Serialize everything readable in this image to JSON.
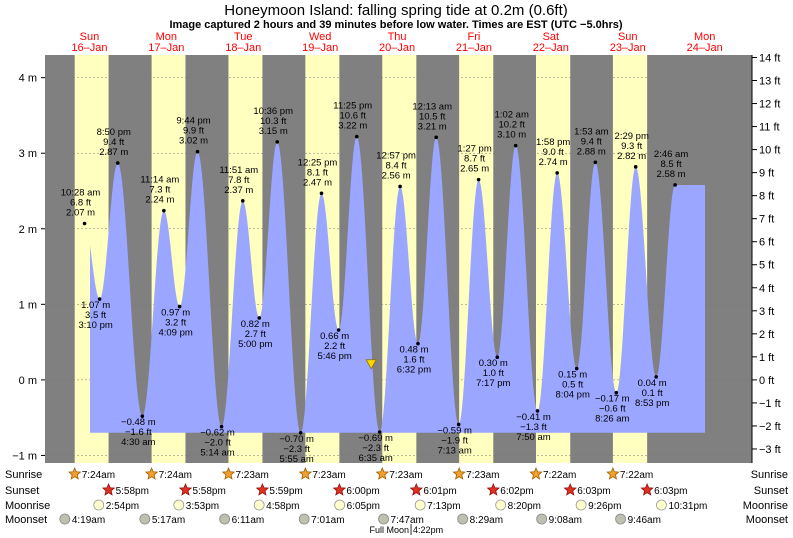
{
  "title": "Honeymoon Island: falling  spring tide at 0.2m (0.6ft)",
  "subtitle": "Image captured 2 hours and 39 minutes before low water. Times are EST (UTC −5.0hrs)",
  "colors": {
    "night": "#808080",
    "day": "#ffffc0",
    "water": "#9aa6ff",
    "day_label": "#ff0000",
    "current_marker": "#ffd700"
  },
  "chart_data": {
    "type": "area",
    "ylim_m": [
      -1.1,
      4.3
    ],
    "ylim_ft": [
      -3.6,
      14.1
    ],
    "y_ticks_m": [
      -1,
      0,
      1,
      2,
      3,
      4
    ],
    "y_tick_labels_m": [
      "−1 m",
      "0 m",
      "1 m",
      "2 m",
      "3 m",
      "4 m"
    ],
    "y_ticks_ft": [
      -3,
      -2,
      -1,
      0,
      1,
      2,
      3,
      4,
      5,
      6,
      7,
      8,
      9,
      10,
      11,
      12,
      13,
      14
    ],
    "y_tick_labels_ft": [
      "−3 ft",
      "−2 ft",
      "−1 ft",
      "0 ft",
      "1 ft",
      "2 ft",
      "3 ft",
      "4 ft",
      "5 ft",
      "6 ft",
      "7 ft",
      "8 ft",
      "9 ft",
      "10 ft",
      "11 ft",
      "12 ft",
      "13 ft",
      "14 ft"
    ],
    "days": [
      {
        "name": "Sun",
        "date": "16–Jan"
      },
      {
        "name": "Mon",
        "date": "17–Jan"
      },
      {
        "name": "Tue",
        "date": "18–Jan"
      },
      {
        "name": "Wed",
        "date": "19–Jan"
      },
      {
        "name": "Thu",
        "date": "20–Jan"
      },
      {
        "name": "Fri",
        "date": "21–Jan"
      },
      {
        "name": "Sat",
        "date": "22–Jan"
      },
      {
        "name": "Sun",
        "date": "23–Jan"
      },
      {
        "name": "Mon",
        "date": "24–Jan"
      }
    ],
    "tides": [
      {
        "day": 0,
        "time_h": 10.47,
        "m": 2.07,
        "labels": [
          "10:28 am",
          "6.8 ft",
          "2.07 m"
        ]
      },
      {
        "day": 0,
        "time_h": 15.17,
        "m": 1.07,
        "labels": [
          "1.07 m",
          "3.5 ft",
          "3:10 pm"
        ]
      },
      {
        "day": 0,
        "time_h": 20.83,
        "m": 2.87,
        "labels": [
          "8:50 pm",
          "9.4 ft",
          "2.87 m"
        ]
      },
      {
        "day": 1,
        "time_h": 4.5,
        "m": -0.48,
        "labels": [
          "−0.48 m",
          "−1.6 ft",
          "4:30 am"
        ]
      },
      {
        "day": 1,
        "time_h": 11.23,
        "m": 2.24,
        "labels": [
          "11:14 am",
          "7.3 ft",
          "2.24 m"
        ]
      },
      {
        "day": 1,
        "time_h": 16.15,
        "m": 0.97,
        "labels": [
          "0.97 m",
          "3.2 ft",
          "4:09 pm"
        ]
      },
      {
        "day": 1,
        "time_h": 21.73,
        "m": 3.02,
        "labels": [
          "9:44 pm",
          "9.9 ft",
          "3.02 m"
        ]
      },
      {
        "day": 2,
        "time_h": 5.23,
        "m": -0.62,
        "labels": [
          "−0.62 m",
          "−2.0 ft",
          "5:14 am"
        ]
      },
      {
        "day": 2,
        "time_h": 11.85,
        "m": 2.37,
        "labels": [
          "11:51 am",
          "7.8 ft",
          "2.37 m"
        ]
      },
      {
        "day": 2,
        "time_h": 17.0,
        "m": 0.82,
        "labels": [
          "0.82 m",
          "2.7 ft",
          "5:00 pm"
        ]
      },
      {
        "day": 2,
        "time_h": 22.6,
        "m": 3.15,
        "labels": [
          "10:36 pm",
          "10.3 ft",
          "3.15 m"
        ]
      },
      {
        "day": 3,
        "time_h": 5.92,
        "m": -0.7,
        "labels": [
          "−0.70 m",
          "−2.3 ft",
          "5:55 am"
        ]
      },
      {
        "day": 3,
        "time_h": 12.42,
        "m": 2.47,
        "labels": [
          "12:25 pm",
          "8.1 ft",
          "2.47 m"
        ]
      },
      {
        "day": 3,
        "time_h": 17.77,
        "m": 0.66,
        "labels": [
          "0.66 m",
          "2.2 ft",
          "5:46 pm"
        ]
      },
      {
        "day": 3,
        "time_h": 23.42,
        "m": 3.22,
        "labels": [
          "11:25 pm",
          "10.6 ft",
          "3.22 m"
        ]
      },
      {
        "day": 4,
        "time_h": 6.58,
        "m": -0.69,
        "labels": [
          "−0.69 m",
          "−2.3 ft",
          "6:35 am"
        ]
      },
      {
        "day": 4,
        "time_h": 12.95,
        "m": 2.56,
        "labels": [
          "12:57 pm",
          "8.4 ft",
          "2.56 m"
        ]
      },
      {
        "day": 4,
        "time_h": 18.53,
        "m": 0.48,
        "labels": [
          "0.48 m",
          "1.6 ft",
          "6:32 pm"
        ]
      },
      {
        "day": 5,
        "time_h": 0.22,
        "m": 3.21,
        "labels": [
          "12:13 am",
          "10.5 ft",
          "3.21 m"
        ]
      },
      {
        "day": 5,
        "time_h": 7.22,
        "m": -0.59,
        "labels": [
          "−0.59 m",
          "−1.9 ft",
          "7:13 am"
        ]
      },
      {
        "day": 5,
        "time_h": 13.45,
        "m": 2.65,
        "labels": [
          "1:27 pm",
          "8.7 ft",
          "2.65 m"
        ]
      },
      {
        "day": 5,
        "time_h": 19.28,
        "m": 0.3,
        "labels": [
          "0.30 m",
          "1.0 ft",
          "7:17 pm"
        ]
      },
      {
        "day": 6,
        "time_h": 1.03,
        "m": 3.1,
        "labels": [
          "1:02 am",
          "10.2 ft",
          "3.10 m"
        ]
      },
      {
        "day": 6,
        "time_h": 7.83,
        "m": -0.41,
        "labels": [
          "−0.41 m",
          "−1.3 ft",
          "7:50 am"
        ]
      },
      {
        "day": 6,
        "time_h": 13.97,
        "m": 2.74,
        "labels": [
          "1:58 pm",
          "9.0 ft",
          "2.74 m"
        ]
      },
      {
        "day": 6,
        "time_h": 20.07,
        "m": 0.15,
        "labels": [
          "0.15 m",
          "0.5 ft",
          "8:04 pm"
        ]
      },
      {
        "day": 7,
        "time_h": 1.88,
        "m": 2.88,
        "labels": [
          "1:53 am",
          "9.4 ft",
          "2.88 m"
        ]
      },
      {
        "day": 7,
        "time_h": 8.43,
        "m": -0.17,
        "labels": [
          "−0.17 m",
          "−0.6 ft",
          "8:26 am"
        ]
      },
      {
        "day": 7,
        "time_h": 14.48,
        "m": 2.82,
        "labels": [
          "2:29 pm",
          "9.3 ft",
          "2.82 m"
        ]
      },
      {
        "day": 7,
        "time_h": 20.88,
        "m": 0.04,
        "labels": [
          "0.04 m",
          "0.1 ft",
          "8:53 pm"
        ]
      },
      {
        "day": 8,
        "time_h": 2.77,
        "m": 2.58,
        "labels": [
          "2:46 am",
          "8.5 ft",
          "2.58 m"
        ]
      }
    ],
    "current": {
      "day": 4,
      "time_h": 3.93,
      "m": 0.2
    }
  },
  "sunrise": {
    "label": "Sunrise",
    "times": [
      "7:24am",
      "7:24am",
      "7:23am",
      "7:23am",
      "7:23am",
      "7:23am",
      "7:22am",
      "7:22am"
    ]
  },
  "sunset": {
    "label": "Sunset",
    "times": [
      "5:58pm",
      "5:58pm",
      "5:59pm",
      "6:00pm",
      "6:01pm",
      "6:02pm",
      "6:03pm",
      "6:03pm"
    ]
  },
  "moonrise": {
    "label": "Moonrise",
    "times": [
      "2:54pm",
      "3:53pm",
      "4:58pm",
      "6:05pm",
      "7:13pm",
      "8:20pm",
      "9:26pm",
      "10:31pm"
    ]
  },
  "moonset": {
    "label": "Moonset",
    "times": [
      "4:19am",
      "5:17am",
      "6:11am",
      "7:01am",
      "7:47am",
      "8:29am",
      "9:08am",
      "9:46am"
    ]
  },
  "moon_phase": {
    "label": "Full Moon",
    "time": "4:22pm"
  }
}
